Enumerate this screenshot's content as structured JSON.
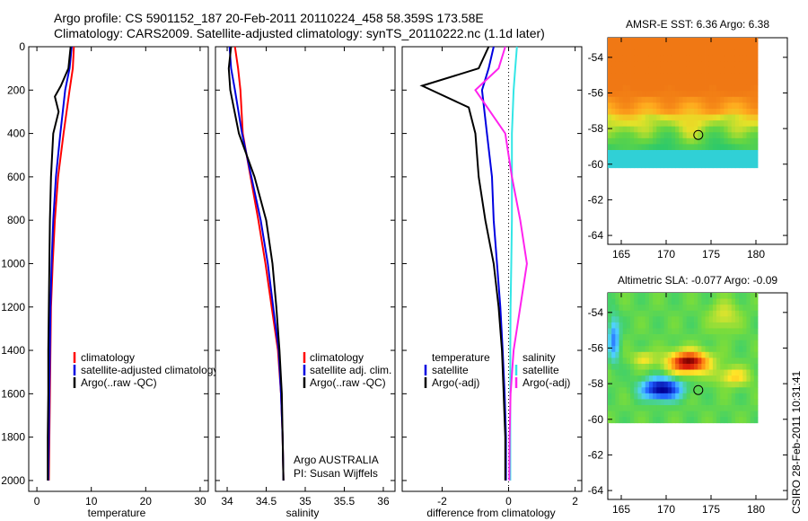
{
  "header": {
    "line1": "Argo profile: CS 5901152_187 20-Feb-2011 20110224_458 58.359S 173.58E",
    "line2": "Climatology: CARS2009. Satellite-adjusted climatology: synTS_20110222.nc (1.1d later)"
  },
  "credit": "CSIRO 28-Feb-2011 10:31:41",
  "colors": {
    "climatology": "#ff0000",
    "satellite": "#0000e0",
    "argo": "#000000",
    "salinity_satellite": "#33e6e6",
    "salinity_argo": "#ff22ee"
  },
  "panels": {
    "temperature": {
      "xlabel": "temperature",
      "xticks": [
        "0",
        "10",
        "20",
        "30"
      ],
      "legend": [
        "climatology",
        "satellite-adjusted climatology",
        "Argo(..raw -QC)"
      ]
    },
    "salinity": {
      "xlabel": "salinity",
      "xticks": [
        "34",
        "34.5",
        "35",
        "35.5",
        "36"
      ],
      "legend": [
        "climatology",
        "satellite adj. clim.",
        "Argo(..raw -QC)"
      ],
      "note1": "Argo AUSTRALIA",
      "note2": "PI: Susan Wijffels"
    },
    "difference": {
      "xlabel": "difference from climatology",
      "xticks": [
        "-2",
        "0",
        "2"
      ],
      "legend_left_title": "temperature",
      "legend_left": [
        "satellite",
        "Argo(-adj)"
      ],
      "legend_right_title": "salinity",
      "legend_right": [
        "satellite",
        "Argo(-adj)"
      ]
    },
    "yticks": [
      "0",
      "200",
      "400",
      "600",
      "800",
      "1000",
      "1200",
      "1400",
      "1600",
      "1800",
      "2000"
    ]
  },
  "maps": {
    "sst": {
      "title": "AMSR-E SST: 6.36 Argo: 6.38"
    },
    "sla": {
      "title": "Altimetric SLA: -0.077 Argo: -0.09"
    },
    "xticks": [
      "165",
      "170",
      "175",
      "180"
    ],
    "yticks": [
      "-54",
      "-56",
      "-58",
      "-60",
      "-62",
      "-64"
    ],
    "float_position": {
      "lon": 173.58,
      "lat": -58.359
    }
  },
  "chart_data": [
    {
      "type": "line",
      "name": "temperature profile",
      "xlabel": "temperature",
      "ylabel": "",
      "xlim": [
        -1.5,
        31.5
      ],
      "ylim": [
        2050,
        0
      ],
      "series": [
        {
          "name": "climatology",
          "x": [
            6.8,
            6.6,
            6.0,
            4.9,
            3.9,
            3.3,
            2.9,
            2.6,
            2.5,
            2.4,
            2.3,
            2.2
          ],
          "y": [
            0,
            100,
            200,
            400,
            600,
            800,
            1000,
            1200,
            1400,
            1600,
            1800,
            2000
          ]
        },
        {
          "name": "satellite-adjusted climatology",
          "x": [
            6.4,
            6.0,
            5.2,
            4.3,
            3.5,
            3.0,
            2.7,
            2.5,
            2.4,
            2.3,
            2.2,
            2.1
          ],
          "y": [
            0,
            100,
            200,
            400,
            600,
            800,
            1000,
            1200,
            1400,
            1600,
            1800,
            2000
          ]
        },
        {
          "name": "Argo(..raw -QC)",
          "x": [
            6.2,
            5.8,
            4.4,
            3.3,
            4.0,
            3.0,
            2.6,
            2.4,
            2.3,
            2.2,
            2.1,
            2.1,
            2.0,
            2.0
          ],
          "y": [
            0,
            100,
            180,
            230,
            300,
            400,
            600,
            800,
            1000,
            1200,
            1400,
            1600,
            1800,
            2000
          ]
        }
      ]
    },
    {
      "type": "line",
      "name": "salinity profile",
      "xlabel": "salinity",
      "ylabel": "",
      "xlim": [
        33.85,
        36.15
      ],
      "ylim": [
        2050,
        0
      ],
      "series": [
        {
          "name": "climatology",
          "x": [
            34.1,
            34.14,
            34.17,
            34.2,
            34.3,
            34.4,
            34.49,
            34.57,
            34.65,
            34.69,
            34.71,
            34.72
          ],
          "y": [
            0,
            100,
            200,
            400,
            600,
            800,
            1000,
            1200,
            1400,
            1600,
            1800,
            2000
          ]
        },
        {
          "name": "satellite adj. clim.",
          "x": [
            34.03,
            34.05,
            34.1,
            34.19,
            34.31,
            34.43,
            34.52,
            34.59,
            34.66,
            34.69,
            34.71,
            34.72
          ],
          "y": [
            0,
            100,
            200,
            400,
            600,
            800,
            1000,
            1200,
            1400,
            1600,
            1800,
            2000
          ]
        },
        {
          "name": "Argo(..raw -QC)",
          "x": [
            34.05,
            34.02,
            34.04,
            34.15,
            34.35,
            34.5,
            34.58,
            34.63,
            34.67,
            34.7,
            34.71,
            34.72
          ],
          "y": [
            0,
            100,
            200,
            400,
            600,
            800,
            1000,
            1200,
            1400,
            1600,
            1800,
            2000
          ]
        }
      ]
    },
    {
      "type": "line",
      "name": "difference from climatology",
      "xlabel": "difference from climatology",
      "ylabel": "",
      "xlim": [
        -3.2,
        2.2
      ],
      "ylim": [
        2050,
        0
      ],
      "series": [
        {
          "name": "temperature satellite",
          "x": [
            -0.45,
            -0.6,
            -0.8,
            -0.65,
            -0.5,
            -0.45,
            -0.35,
            -0.25,
            -0.18,
            -0.12,
            -0.08,
            -0.08
          ],
          "y": [
            0,
            100,
            200,
            400,
            600,
            800,
            1000,
            1200,
            1400,
            1600,
            1800,
            2000
          ]
        },
        {
          "name": "temperature Argo(-adj)",
          "x": [
            -0.6,
            -0.9,
            -2.6,
            -1.2,
            -1.0,
            -0.9,
            -0.7,
            -0.45,
            -0.3,
            -0.2,
            -0.15,
            -0.1,
            -0.1
          ],
          "y": [
            0,
            100,
            180,
            280,
            400,
            600,
            800,
            1000,
            1200,
            1400,
            1600,
            1800,
            2000
          ]
        },
        {
          "name": "salinity satellite",
          "x": [
            0.25,
            0.2,
            0.15,
            0.1,
            0.1,
            0.1,
            0.08,
            0.06,
            0.05,
            0.05,
            0.05,
            0.05
          ],
          "y": [
            0,
            100,
            200,
            400,
            600,
            800,
            1000,
            1200,
            1400,
            1600,
            1800,
            2000
          ]
        },
        {
          "name": "salinity Argo(-adj)",
          "x": [
            -0.1,
            -0.3,
            -1.0,
            -0.1,
            0.1,
            0.35,
            0.55,
            0.35,
            0.15,
            0.06,
            0.03,
            0.02
          ],
          "y": [
            0,
            100,
            200,
            400,
            600,
            800,
            1000,
            1200,
            1400,
            1600,
            1800,
            2000
          ]
        }
      ]
    },
    {
      "type": "heatmap",
      "name": "AMSR-E SST",
      "title": "AMSR-E SST: 6.36 Argo: 6.38",
      "xlim": [
        163.5,
        183.5
      ],
      "ylim": [
        -64.5,
        -52.9
      ]
    },
    {
      "type": "heatmap",
      "name": "Altimetric SLA",
      "title": "Altimetric SLA: -0.077 Argo: -0.09",
      "xlim": [
        163.5,
        183.5
      ],
      "ylim": [
        -64.5,
        -52.9
      ]
    }
  ]
}
